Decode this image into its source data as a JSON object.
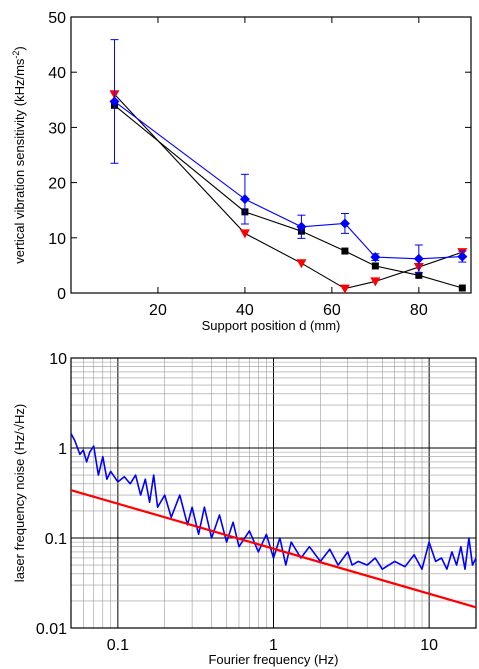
{
  "chart_data": [
    {
      "type": "scatter",
      "xlabel": "Support position d (mm)",
      "ylabel": "vertical vibration sensitivity (kHz/ms",
      "ylabel_sup": "-2",
      "ylabel_end": ")",
      "xlim": [
        0,
        92
      ],
      "ylim": [
        0,
        50
      ],
      "xticks": [
        20,
        40,
        60,
        80
      ],
      "yticks": [
        0,
        10,
        20,
        30,
        40,
        50
      ],
      "grid": false,
      "series": [
        {
          "marker": "square",
          "color": "#000000",
          "x": [
            10,
            40,
            53,
            63,
            70,
            80,
            90
          ],
          "y": [
            34,
            14.7,
            11.2,
            7.6,
            4.9,
            3.2,
            0.9
          ]
        },
        {
          "marker": "triangle-down",
          "color": "#ff0000",
          "line_color": "#000000",
          "x": [
            10,
            40,
            53,
            63,
            70,
            80,
            90
          ],
          "y": [
            36,
            10.8,
            5.4,
            0.8,
            2.1,
            4.7,
            7.4
          ]
        },
        {
          "marker": "diamond",
          "color": "#0000ff",
          "x": [
            10,
            40,
            53,
            63,
            70,
            80,
            90
          ],
          "y": [
            34.7,
            17,
            12,
            12.6,
            6.5,
            6.2,
            6.6
          ],
          "yerr": [
            11.2,
            4.5,
            2.1,
            1.8,
            0.6,
            2.5,
            1
          ]
        }
      ]
    },
    {
      "type": "line",
      "xlabel": "Fourier frequency (Hz)",
      "ylabel": "laser frequency noise (Hz/√Hz)",
      "xscale": "log",
      "yscale": "log",
      "xlim": [
        0.05,
        20
      ],
      "ylim": [
        0.01,
        10
      ],
      "xtick_labels": [
        "0.1",
        "1",
        "10"
      ],
      "xticks": [
        0.1,
        1,
        10
      ],
      "ytick_labels": [
        "0.01",
        "0.1",
        "1",
        "10"
      ],
      "yticks": [
        0.01,
        0.1,
        1,
        10
      ],
      "grid": true,
      "series": [
        {
          "color": "#0000ff",
          "x": [
            0.05,
            0.053,
            0.057,
            0.06,
            0.063,
            0.066,
            0.07,
            0.075,
            0.08,
            0.085,
            0.09,
            0.1,
            0.11,
            0.12,
            0.13,
            0.14,
            0.15,
            0.16,
            0.17,
            0.18,
            0.2,
            0.22,
            0.25,
            0.28,
            0.3,
            0.33,
            0.36,
            0.4,
            0.45,
            0.5,
            0.55,
            0.6,
            0.7,
            0.8,
            0.9,
            1.0,
            1.1,
            1.2,
            1.3,
            1.5,
            1.7,
            2.0,
            2.3,
            2.6,
            3.0,
            3.2,
            3.5,
            4.0,
            4.5,
            5.0,
            6.0,
            7.0,
            8.0,
            9.0,
            10,
            11,
            12,
            13,
            14,
            15,
            16,
            17,
            18,
            19,
            20
          ],
          "y": [
            1.45,
            1.2,
            0.85,
            0.95,
            0.7,
            0.9,
            1.05,
            0.5,
            0.8,
            0.45,
            0.55,
            0.42,
            0.48,
            0.4,
            0.5,
            0.3,
            0.45,
            0.25,
            0.5,
            0.22,
            0.3,
            0.17,
            0.3,
            0.14,
            0.22,
            0.11,
            0.22,
            0.1,
            0.18,
            0.09,
            0.15,
            0.08,
            0.12,
            0.07,
            0.11,
            0.06,
            0.1,
            0.05,
            0.09,
            0.06,
            0.08,
            0.055,
            0.075,
            0.05,
            0.07,
            0.05,
            0.055,
            0.05,
            0.06,
            0.045,
            0.055,
            0.048,
            0.065,
            0.045,
            0.09,
            0.055,
            0.06,
            0.045,
            0.07,
            0.05,
            0.08,
            0.045,
            0.1,
            0.05,
            0.06
          ]
        },
        {
          "color": "#ff0000",
          "x": [
            0.05,
            20
          ],
          "y": [
            0.34,
            0.017
          ]
        }
      ]
    }
  ]
}
